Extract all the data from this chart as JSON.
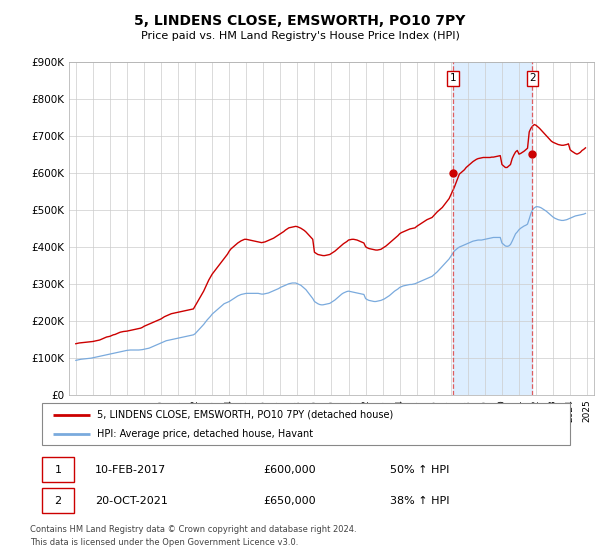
{
  "title": "5, LINDENS CLOSE, EMSWORTH, PO10 7PY",
  "subtitle": "Price paid vs. HM Land Registry's House Price Index (HPI)",
  "legend_line1": "5, LINDENS CLOSE, EMSWORTH, PO10 7PY (detached house)",
  "legend_line2": "HPI: Average price, detached house, Havant",
  "footer1": "Contains HM Land Registry data © Crown copyright and database right 2024.",
  "footer2": "This data is licensed under the Open Government Licence v3.0.",
  "annotation1": {
    "label": "1",
    "date": "10-FEB-2017",
    "price": "£600,000",
    "hpi": "50% ↑ HPI",
    "x_year": 2017.11,
    "y_val": 600000
  },
  "annotation2": {
    "label": "2",
    "date": "20-OCT-2021",
    "price": "£650,000",
    "hpi": "38% ↑ HPI",
    "x_year": 2021.79,
    "y_val": 650000
  },
  "red_line_color": "#cc0000",
  "blue_line_color": "#7aaadd",
  "shade_color": "#ddeeff",
  "dashed_line_color": "#dd4444",
  "grid_color": "#cccccc",
  "ylim": [
    0,
    900000
  ],
  "yticks": [
    0,
    100000,
    200000,
    300000,
    400000,
    500000,
    600000,
    700000,
    800000,
    900000
  ],
  "ytick_labels": [
    "£0",
    "£100K",
    "£200K",
    "£300K",
    "£400K",
    "£500K",
    "£600K",
    "£700K",
    "£800K",
    "£900K"
  ],
  "xlim_start": 1994.6,
  "xlim_end": 2025.4,
  "red_x": [
    1995.0,
    1995.1,
    1995.2,
    1995.3,
    1995.4,
    1995.5,
    1995.6,
    1995.7,
    1995.8,
    1995.9,
    1996.0,
    1996.1,
    1996.2,
    1996.3,
    1996.4,
    1996.5,
    1996.6,
    1996.7,
    1996.8,
    1996.9,
    1997.0,
    1997.1,
    1997.2,
    1997.3,
    1997.4,
    1997.5,
    1997.6,
    1997.7,
    1997.8,
    1997.9,
    1998.0,
    1998.1,
    1998.2,
    1998.3,
    1998.4,
    1998.5,
    1998.6,
    1998.7,
    1998.8,
    1998.9,
    1999.0,
    1999.1,
    1999.2,
    1999.3,
    1999.4,
    1999.5,
    1999.6,
    1999.7,
    1999.8,
    1999.9,
    2000.0,
    2000.1,
    2000.2,
    2000.3,
    2000.4,
    2000.5,
    2000.6,
    2000.7,
    2000.8,
    2000.9,
    2001.0,
    2001.1,
    2001.2,
    2001.3,
    2001.4,
    2001.5,
    2001.6,
    2001.7,
    2001.8,
    2001.9,
    2002.0,
    2002.1,
    2002.2,
    2002.3,
    2002.4,
    2002.5,
    2002.6,
    2002.7,
    2002.8,
    2002.9,
    2003.0,
    2003.1,
    2003.2,
    2003.3,
    2003.4,
    2003.5,
    2003.6,
    2003.7,
    2003.8,
    2003.9,
    2004.0,
    2004.1,
    2004.2,
    2004.3,
    2004.4,
    2004.5,
    2004.6,
    2004.7,
    2004.8,
    2004.9,
    2005.0,
    2005.1,
    2005.2,
    2005.3,
    2005.4,
    2005.5,
    2005.6,
    2005.7,
    2005.8,
    2005.9,
    2006.0,
    2006.1,
    2006.2,
    2006.3,
    2006.4,
    2006.5,
    2006.6,
    2006.7,
    2006.8,
    2006.9,
    2007.0,
    2007.1,
    2007.2,
    2007.3,
    2007.4,
    2007.5,
    2007.6,
    2007.7,
    2007.8,
    2007.9,
    2008.0,
    2008.1,
    2008.2,
    2008.3,
    2008.4,
    2008.5,
    2008.6,
    2008.7,
    2008.8,
    2008.9,
    2009.0,
    2009.1,
    2009.2,
    2009.3,
    2009.4,
    2009.5,
    2009.6,
    2009.7,
    2009.8,
    2009.9,
    2010.0,
    2010.1,
    2010.2,
    2010.3,
    2010.4,
    2010.5,
    2010.6,
    2010.7,
    2010.8,
    2010.9,
    2011.0,
    2011.1,
    2011.2,
    2011.3,
    2011.4,
    2011.5,
    2011.6,
    2011.7,
    2011.8,
    2011.9,
    2012.0,
    2012.1,
    2012.2,
    2012.3,
    2012.4,
    2012.5,
    2012.6,
    2012.7,
    2012.8,
    2012.9,
    2013.0,
    2013.1,
    2013.2,
    2013.3,
    2013.4,
    2013.5,
    2013.6,
    2013.7,
    2013.8,
    2013.9,
    2014.0,
    2014.1,
    2014.2,
    2014.3,
    2014.4,
    2014.5,
    2014.6,
    2014.7,
    2014.8,
    2014.9,
    2015.0,
    2015.1,
    2015.2,
    2015.3,
    2015.4,
    2015.5,
    2015.6,
    2015.7,
    2015.8,
    2015.9,
    2016.0,
    2016.1,
    2016.2,
    2016.3,
    2016.4,
    2016.5,
    2016.6,
    2016.7,
    2016.8,
    2016.9,
    2017.0,
    2017.1,
    2017.2,
    2017.3,
    2017.4,
    2017.5,
    2017.6,
    2017.7,
    2017.8,
    2017.9,
    2018.0,
    2018.1,
    2018.2,
    2018.3,
    2018.4,
    2018.5,
    2018.6,
    2018.7,
    2018.8,
    2018.9,
    2019.0,
    2019.1,
    2019.2,
    2019.3,
    2019.4,
    2019.5,
    2019.6,
    2019.7,
    2019.8,
    2019.9,
    2020.0,
    2020.1,
    2020.2,
    2020.3,
    2020.4,
    2020.5,
    2020.6,
    2020.7,
    2020.8,
    2020.9,
    2021.0,
    2021.1,
    2021.2,
    2021.3,
    2021.4,
    2021.5,
    2021.6,
    2021.7,
    2021.8,
    2021.9,
    2022.0,
    2022.1,
    2022.2,
    2022.3,
    2022.4,
    2022.5,
    2022.6,
    2022.7,
    2022.8,
    2022.9,
    2023.0,
    2023.1,
    2023.2,
    2023.3,
    2023.4,
    2023.5,
    2023.6,
    2023.7,
    2023.8,
    2023.9,
    2024.0,
    2024.1,
    2024.2,
    2024.3,
    2024.4,
    2024.5,
    2024.6,
    2024.7,
    2024.8,
    2024.9
  ],
  "red_y": [
    138000,
    139000,
    140000,
    140500,
    141000,
    141500,
    142000,
    142500,
    143000,
    143500,
    144000,
    145000,
    146000,
    147000,
    148000,
    150000,
    152000,
    154000,
    156000,
    157000,
    158000,
    160000,
    162000,
    163000,
    165000,
    167000,
    169000,
    170000,
    171000,
    171500,
    172000,
    173000,
    174000,
    175000,
    176000,
    177000,
    178000,
    179000,
    180000,
    182000,
    185000,
    187000,
    189000,
    191000,
    193000,
    195000,
    197000,
    199000,
    201000,
    203000,
    205000,
    208000,
    211000,
    213000,
    215000,
    217000,
    219000,
    220000,
    221000,
    222000,
    223000,
    224000,
    225000,
    226000,
    227000,
    228000,
    229000,
    230000,
    231000,
    232000,
    240000,
    248000,
    256000,
    264000,
    272000,
    280000,
    290000,
    300000,
    310000,
    318000,
    326000,
    332000,
    338000,
    344000,
    350000,
    356000,
    362000,
    368000,
    374000,
    380000,
    388000,
    394000,
    398000,
    402000,
    406000,
    410000,
    413000,
    416000,
    418000,
    420000,
    420000,
    419000,
    418000,
    417000,
    416000,
    415000,
    414000,
    413000,
    412000,
    411000,
    412000,
    413000,
    415000,
    417000,
    419000,
    421000,
    423000,
    426000,
    429000,
    432000,
    435000,
    438000,
    441000,
    445000,
    448000,
    451000,
    452000,
    453000,
    454000,
    455000,
    454000,
    452000,
    450000,
    447000,
    444000,
    440000,
    435000,
    430000,
    425000,
    420000,
    385000,
    382000,
    379000,
    378000,
    377000,
    376000,
    376000,
    377000,
    378000,
    379000,
    382000,
    385000,
    388000,
    392000,
    396000,
    400000,
    404000,
    408000,
    411000,
    414000,
    418000,
    419000,
    420000,
    420000,
    419000,
    418000,
    416000,
    414000,
    412000,
    410000,
    400000,
    397000,
    395000,
    394000,
    393000,
    392000,
    391000,
    391000,
    392000,
    393000,
    396000,
    399000,
    402000,
    406000,
    410000,
    414000,
    418000,
    422000,
    426000,
    430000,
    435000,
    438000,
    440000,
    442000,
    444000,
    446000,
    448000,
    449000,
    450000,
    451000,
    455000,
    458000,
    461000,
    464000,
    467000,
    470000,
    473000,
    475000,
    477000,
    479000,
    484000,
    489000,
    494000,
    498000,
    502000,
    506000,
    512000,
    518000,
    524000,
    530000,
    540000,
    550000,
    560000,
    572000,
    584000,
    596000,
    600000,
    604000,
    608000,
    614000,
    618000,
    622000,
    626000,
    630000,
    633000,
    636000,
    638000,
    639000,
    640000,
    641000,
    641000,
    641000,
    641000,
    641000,
    642000,
    642000,
    643000,
    644000,
    645000,
    646000,
    622000,
    618000,
    614000,
    614000,
    618000,
    622000,
    638000,
    648000,
    656000,
    660000,
    650000,
    652000,
    655000,
    658000,
    662000,
    666000,
    710000,
    720000,
    726000,
    730000,
    728000,
    724000,
    720000,
    715000,
    710000,
    705000,
    700000,
    695000,
    690000,
    685000,
    682000,
    680000,
    678000,
    676000,
    675000,
    674000,
    674000,
    675000,
    676000,
    678000,
    662000,
    658000,
    655000,
    652000,
    650000,
    652000,
    655000,
    660000,
    663000,
    667000
  ],
  "blue_x": [
    1995.0,
    1995.1,
    1995.2,
    1995.3,
    1995.4,
    1995.5,
    1995.6,
    1995.7,
    1995.8,
    1995.9,
    1996.0,
    1996.1,
    1996.2,
    1996.3,
    1996.4,
    1996.5,
    1996.6,
    1996.7,
    1996.8,
    1996.9,
    1997.0,
    1997.1,
    1997.2,
    1997.3,
    1997.4,
    1997.5,
    1997.6,
    1997.7,
    1997.8,
    1997.9,
    1998.0,
    1998.1,
    1998.2,
    1998.3,
    1998.4,
    1998.5,
    1998.6,
    1998.7,
    1998.8,
    1998.9,
    1999.0,
    1999.1,
    1999.2,
    1999.3,
    1999.4,
    1999.5,
    1999.6,
    1999.7,
    1999.8,
    1999.9,
    2000.0,
    2000.1,
    2000.2,
    2000.3,
    2000.4,
    2000.5,
    2000.6,
    2000.7,
    2000.8,
    2000.9,
    2001.0,
    2001.1,
    2001.2,
    2001.3,
    2001.4,
    2001.5,
    2001.6,
    2001.7,
    2001.8,
    2001.9,
    2002.0,
    2002.1,
    2002.2,
    2002.3,
    2002.4,
    2002.5,
    2002.6,
    2002.7,
    2002.8,
    2002.9,
    2003.0,
    2003.1,
    2003.2,
    2003.3,
    2003.4,
    2003.5,
    2003.6,
    2003.7,
    2003.8,
    2003.9,
    2004.0,
    2004.1,
    2004.2,
    2004.3,
    2004.4,
    2004.5,
    2004.6,
    2004.7,
    2004.8,
    2004.9,
    2005.0,
    2005.1,
    2005.2,
    2005.3,
    2005.4,
    2005.5,
    2005.6,
    2005.7,
    2005.8,
    2005.9,
    2006.0,
    2006.1,
    2006.2,
    2006.3,
    2006.4,
    2006.5,
    2006.6,
    2006.7,
    2006.8,
    2006.9,
    2007.0,
    2007.1,
    2007.2,
    2007.3,
    2007.4,
    2007.5,
    2007.6,
    2007.7,
    2007.8,
    2007.9,
    2008.0,
    2008.1,
    2008.2,
    2008.3,
    2008.4,
    2008.5,
    2008.6,
    2008.7,
    2008.8,
    2008.9,
    2009.0,
    2009.1,
    2009.2,
    2009.3,
    2009.4,
    2009.5,
    2009.6,
    2009.7,
    2009.8,
    2009.9,
    2010.0,
    2010.1,
    2010.2,
    2010.3,
    2010.4,
    2010.5,
    2010.6,
    2010.7,
    2010.8,
    2010.9,
    2011.0,
    2011.1,
    2011.2,
    2011.3,
    2011.4,
    2011.5,
    2011.6,
    2011.7,
    2011.8,
    2011.9,
    2012.0,
    2012.1,
    2012.2,
    2012.3,
    2012.4,
    2012.5,
    2012.6,
    2012.7,
    2012.8,
    2012.9,
    2013.0,
    2013.1,
    2013.2,
    2013.3,
    2013.4,
    2013.5,
    2013.6,
    2013.7,
    2013.8,
    2013.9,
    2014.0,
    2014.1,
    2014.2,
    2014.3,
    2014.4,
    2014.5,
    2014.6,
    2014.7,
    2014.8,
    2014.9,
    2015.0,
    2015.1,
    2015.2,
    2015.3,
    2015.4,
    2015.5,
    2015.6,
    2015.7,
    2015.8,
    2015.9,
    2016.0,
    2016.1,
    2016.2,
    2016.3,
    2016.4,
    2016.5,
    2016.6,
    2016.7,
    2016.8,
    2016.9,
    2017.0,
    2017.1,
    2017.2,
    2017.3,
    2017.4,
    2017.5,
    2017.6,
    2017.7,
    2017.8,
    2017.9,
    2018.0,
    2018.1,
    2018.2,
    2018.3,
    2018.4,
    2018.5,
    2018.6,
    2018.7,
    2018.8,
    2018.9,
    2019.0,
    2019.1,
    2019.2,
    2019.3,
    2019.4,
    2019.5,
    2019.6,
    2019.7,
    2019.8,
    2019.9,
    2020.0,
    2020.1,
    2020.2,
    2020.3,
    2020.4,
    2020.5,
    2020.6,
    2020.7,
    2020.8,
    2020.9,
    2021.0,
    2021.1,
    2021.2,
    2021.3,
    2021.4,
    2021.5,
    2021.6,
    2021.7,
    2021.8,
    2021.9,
    2022.0,
    2022.1,
    2022.2,
    2022.3,
    2022.4,
    2022.5,
    2022.6,
    2022.7,
    2022.8,
    2022.9,
    2023.0,
    2023.1,
    2023.2,
    2023.3,
    2023.4,
    2023.5,
    2023.6,
    2023.7,
    2023.8,
    2023.9,
    2024.0,
    2024.1,
    2024.2,
    2024.3,
    2024.4,
    2024.5,
    2024.6,
    2024.7,
    2024.8,
    2024.9
  ],
  "blue_y": [
    93000,
    94000,
    95000,
    96000,
    96500,
    97000,
    97500,
    98000,
    98500,
    99000,
    100000,
    101000,
    102000,
    103000,
    104000,
    105000,
    106000,
    107000,
    108000,
    109000,
    110000,
    111000,
    112000,
    113000,
    114000,
    115000,
    116000,
    117000,
    118000,
    119000,
    120000,
    120500,
    121000,
    121000,
    121000,
    121000,
    121000,
    121000,
    121500,
    122000,
    123000,
    124000,
    125000,
    126000,
    128000,
    130000,
    132000,
    134000,
    136000,
    138000,
    140000,
    142000,
    144000,
    146000,
    147000,
    148000,
    149000,
    150000,
    151000,
    152000,
    153000,
    154000,
    155000,
    156000,
    157000,
    158000,
    159000,
    160000,
    161000,
    162000,
    165000,
    170000,
    175000,
    180000,
    185000,
    190000,
    196000,
    202000,
    207000,
    212000,
    218000,
    222000,
    226000,
    230000,
    234000,
    238000,
    242000,
    246000,
    248000,
    250000,
    252000,
    255000,
    258000,
    261000,
    264000,
    267000,
    269000,
    271000,
    272000,
    273000,
    274000,
    274000,
    274000,
    274000,
    274000,
    274000,
    274000,
    274000,
    273000,
    272000,
    272000,
    273000,
    274000,
    275000,
    277000,
    279000,
    281000,
    283000,
    285000,
    287000,
    290000,
    292000,
    294000,
    296000,
    298000,
    300000,
    301000,
    302000,
    302000,
    302000,
    300000,
    298000,
    296000,
    292000,
    288000,
    284000,
    278000,
    272000,
    266000,
    260000,
    252000,
    249000,
    246000,
    244000,
    243000,
    243000,
    244000,
    245000,
    246000,
    247000,
    250000,
    253000,
    256000,
    260000,
    264000,
    268000,
    272000,
    275000,
    277000,
    279000,
    280000,
    279000,
    278000,
    277000,
    276000,
    275000,
    274000,
    273000,
    272000,
    271000,
    260000,
    257000,
    255000,
    254000,
    253000,
    252000,
    252000,
    253000,
    254000,
    255000,
    257000,
    259000,
    262000,
    265000,
    268000,
    272000,
    276000,
    280000,
    283000,
    286000,
    290000,
    292000,
    294000,
    295000,
    296000,
    297000,
    298000,
    298000,
    299000,
    300000,
    302000,
    304000,
    306000,
    308000,
    310000,
    312000,
    314000,
    316000,
    318000,
    320000,
    324000,
    328000,
    332000,
    337000,
    342000,
    347000,
    352000,
    357000,
    362000,
    367000,
    374000,
    381000,
    388000,
    392000,
    396000,
    399000,
    401000,
    403000,
    405000,
    407000,
    409000,
    411000,
    413000,
    415000,
    416000,
    417000,
    418000,
    418000,
    418000,
    419000,
    420000,
    421000,
    422000,
    423000,
    424000,
    425000,
    425000,
    425000,
    425000,
    425000,
    410000,
    406000,
    402000,
    401000,
    402000,
    406000,
    415000,
    425000,
    435000,
    440000,
    446000,
    450000,
    453000,
    456000,
    458000,
    461000,
    475000,
    490000,
    500000,
    505000,
    508000,
    508000,
    507000,
    505000,
    502000,
    499000,
    496000,
    492000,
    488000,
    484000,
    480000,
    477000,
    475000,
    473000,
    472000,
    471000,
    471000,
    472000,
    473000,
    475000,
    477000,
    479000,
    481000,
    483000,
    484000,
    485000,
    486000,
    487000,
    488000,
    490000
  ]
}
